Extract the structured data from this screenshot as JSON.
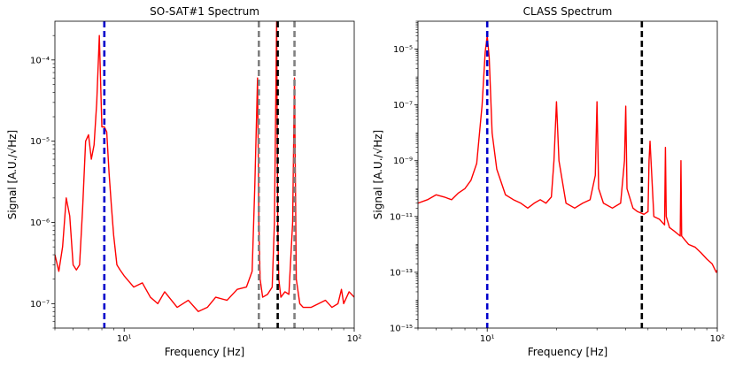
{
  "chart_data": [
    {
      "type": "line",
      "title": "SO-SAT#1 Spectrum",
      "xlabel": "Frequency [Hz]",
      "ylabel": "Signal [A.U./√Hz]",
      "xscale": "log",
      "yscale": "log",
      "xlim": [
        5,
        100
      ],
      "ylim": [
        5e-08,
        0.0003
      ],
      "xticks": [
        {
          "value": 10,
          "label": "10¹"
        },
        {
          "value": 100,
          "label": "10²"
        }
      ],
      "yticks": [
        {
          "value": 1e-07,
          "label": "10⁻⁷"
        },
        {
          "value": 1e-06,
          "label": "10⁻⁶"
        },
        {
          "value": 1e-05,
          "label": "10⁻⁵"
        },
        {
          "value": 0.0001,
          "label": "10⁻⁴"
        }
      ],
      "series": [
        {
          "name": "spectrum",
          "color": "#ff0000",
          "x": [
            5.0,
            5.2,
            5.4,
            5.6,
            5.8,
            6.0,
            6.2,
            6.4,
            6.6,
            6.8,
            7.0,
            7.2,
            7.4,
            7.6,
            7.8,
            8.0,
            8.2,
            8.4,
            8.6,
            8.8,
            9.0,
            9.3,
            9.6,
            10.0,
            11,
            12,
            13,
            14,
            15,
            17,
            19,
            21,
            23,
            25,
            28,
            31,
            34,
            36,
            37,
            38,
            38.5,
            39,
            40,
            42,
            44,
            45,
            46,
            46.5,
            47,
            48,
            50,
            52,
            54,
            55,
            56,
            58,
            60,
            65,
            70,
            75,
            80,
            85,
            88,
            90,
            95,
            100
          ],
          "y": [
            4e-07,
            2.5e-07,
            5e-07,
            2e-06,
            1.2e-06,
            3e-07,
            2.6e-07,
            3e-07,
            1.5e-06,
            1e-05,
            1.2e-05,
            6e-06,
            9e-06,
            3e-05,
            0.0002,
            1.5e-05,
            1.5e-05,
            1.3e-05,
            4e-06,
            1.6e-06,
            7e-07,
            3e-07,
            2.6e-07,
            2.2e-07,
            1.6e-07,
            1.8e-07,
            1.2e-07,
            1e-07,
            1.4e-07,
            9e-08,
            1.1e-07,
            8e-08,
            9e-08,
            1.2e-07,
            1.1e-07,
            1.5e-07,
            1.6e-07,
            2.5e-07,
            3e-06,
            6e-05,
            1e-06,
            2e-07,
            1.2e-07,
            1.3e-07,
            1.6e-07,
            1e-06,
            0.0003,
            1e-06,
            2e-07,
            1.2e-07,
            1.4e-07,
            1.3e-07,
            1e-06,
            6e-05,
            2e-07,
            1e-07,
            9e-08,
            9e-08,
            1e-07,
            1.1e-07,
            9e-08,
            1e-07,
            1.5e-07,
            1e-07,
            1.4e-07,
            1.2e-07
          ]
        }
      ],
      "vlines": [
        {
          "x": 8.2,
          "color": "#0000cc"
        },
        {
          "x": 38.5,
          "color": "#808080"
        },
        {
          "x": 46.5,
          "color": "#000000"
        },
        {
          "x": 55,
          "color": "#808080"
        }
      ]
    },
    {
      "type": "line",
      "title": "CLASS Spectrum",
      "xlabel": "Frequency [Hz]",
      "ylabel": "Signal [A.U./√Hz]",
      "xscale": "log",
      "yscale": "log",
      "xlim": [
        5,
        100
      ],
      "ylim": [
        1e-15,
        0.0001
      ],
      "xticks": [
        {
          "value": 10,
          "label": "10¹"
        },
        {
          "value": 100,
          "label": "10²"
        }
      ],
      "yticks": [
        {
          "value": 1e-15,
          "label": "10⁻¹⁵"
        },
        {
          "value": 1e-13,
          "label": "10⁻¹³"
        },
        {
          "value": 1e-11,
          "label": "10⁻¹¹"
        },
        {
          "value": 1e-09,
          "label": "10⁻⁹"
        },
        {
          "value": 1e-07,
          "label": "10⁻⁷"
        },
        {
          "value": 1e-05,
          "label": "10⁻⁵"
        }
      ],
      "series": [
        {
          "name": "spectrum",
          "color": "#ff0000",
          "x": [
            5.0,
            5.5,
            6.0,
            6.5,
            7.0,
            7.5,
            8.0,
            8.5,
            9.0,
            9.5,
            9.8,
            10.0,
            10.2,
            10.5,
            11,
            12,
            13,
            14,
            15,
            16,
            17,
            18,
            19,
            19.5,
            20,
            20.5,
            22,
            24,
            26,
            28,
            29.5,
            30,
            30.5,
            32,
            35,
            38,
            39.5,
            40,
            40.5,
            43,
            45,
            48,
            50,
            50.5,
            51,
            53,
            56,
            59,
            59.5,
            60,
            62,
            65,
            69,
            69.5,
            70,
            72,
            75,
            80,
            85,
            90,
            95,
            99,
            100
          ],
          "y": [
            3e-11,
            4e-11,
            6e-11,
            5e-11,
            4e-11,
            7e-11,
            1e-10,
            2e-10,
            8e-10,
            1e-07,
            8e-06,
            3e-05,
            5e-06,
            1e-08,
            5e-10,
            6e-11,
            4e-11,
            3e-11,
            2e-11,
            3e-11,
            4e-11,
            3e-11,
            5e-11,
            1e-09,
            1.3e-07,
            1e-09,
            3e-11,
            2e-11,
            3e-11,
            4e-11,
            3e-10,
            1.3e-07,
            1e-10,
            3e-11,
            2e-11,
            3e-11,
            1e-09,
            9e-08,
            1e-10,
            2e-11,
            1.5e-11,
            1.2e-11,
            1.5e-11,
            1e-09,
            5e-09,
            1e-11,
            8e-12,
            5e-12,
            3e-09,
            1e-11,
            4e-12,
            3e-12,
            2e-12,
            1e-09,
            2e-12,
            1.5e-12,
            1e-12,
            8e-13,
            5e-13,
            3e-13,
            2e-13,
            1e-13,
            1.2e-13
          ]
        }
      ],
      "vlines": [
        {
          "x": 10,
          "color": "#0000cc"
        },
        {
          "x": 47,
          "color": "#000000"
        }
      ]
    }
  ]
}
